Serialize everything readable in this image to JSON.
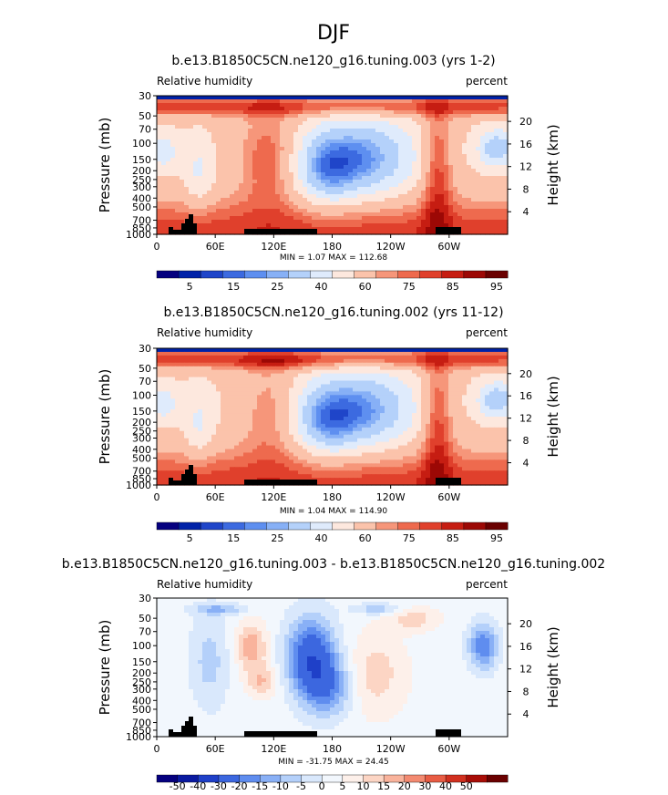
{
  "figure": {
    "title": "DJF"
  },
  "colors": {
    "abs_scale": [
      "#05007f",
      "#0022a8",
      "#1f45c9",
      "#3c6ae0",
      "#5e8ff0",
      "#87b0f6",
      "#b4d1fa",
      "#dfebfc",
      "#fde8de",
      "#fbc3ab",
      "#f6967a",
      "#ee6a4e",
      "#e0402c",
      "#c61d12",
      "#9c0805",
      "#6a0000"
    ],
    "diff_scale": [
      "#05007f",
      "#0a1aa0",
      "#1f40c8",
      "#3c67df",
      "#5f8def",
      "#89b0f6",
      "#b4d0fa",
      "#d9e8fc",
      "#f2f7fd",
      "#fdf0ea",
      "#fcd5c4",
      "#f9b39c",
      "#f38a71",
      "#e85c44",
      "#d1301f",
      "#a80d07",
      "#6a0000"
    ]
  },
  "chart_data": [
    {
      "type": "contour",
      "title": "b.e13.B1850C5CN.ne120_g16.tuning.003 (yrs 1-2)",
      "variable_label": "Relative humidity",
      "units_label": "percent",
      "ylabel": "Pressure  (mb)",
      "ylabel_right": "Height  (km)",
      "y_ticks": [
        "30",
        "50",
        "70",
        "100",
        "150",
        "200",
        "250",
        "300",
        "400",
        "500",
        "700",
        "850",
        "1000"
      ],
      "y_ticks_right": [
        "20",
        "16",
        "12",
        "8",
        "4"
      ],
      "x_ticks": [
        "0",
        "60E",
        "120E",
        "180",
        "120W",
        "60W"
      ],
      "stats": {
        "min": "1.07",
        "max": "112.68",
        "text": "MIN =     1.07   MAX =  112.68"
      },
      "colorbar_labels": [
        "5",
        "15",
        "25",
        "40",
        "60",
        "75",
        "85",
        "95"
      ]
    },
    {
      "type": "contour",
      "title": "b.e13.B1850C5CN.ne120_g16.tuning.002 (yrs 11-12)",
      "variable_label": "Relative humidity",
      "units_label": "percent",
      "ylabel": "Pressure  (mb)",
      "ylabel_right": "Height  (km)",
      "y_ticks": [
        "30",
        "50",
        "70",
        "100",
        "150",
        "200",
        "250",
        "300",
        "400",
        "500",
        "700",
        "850",
        "1000"
      ],
      "y_ticks_right": [
        "20",
        "16",
        "12",
        "8",
        "4"
      ],
      "x_ticks": [
        "0",
        "60E",
        "120E",
        "180",
        "120W",
        "60W"
      ],
      "stats": {
        "min": "1.04",
        "max": "114.90",
        "text": "MIN =     1.04   MAX =  114.90"
      },
      "colorbar_labels": [
        "5",
        "15",
        "25",
        "40",
        "60",
        "75",
        "85",
        "95"
      ]
    },
    {
      "type": "contour",
      "title": "b.e13.B1850C5CN.ne120_g16.tuning.003 - b.e13.B1850C5CN.ne120_g16.tuning.002",
      "variable_label": "Relative humidity",
      "units_label": "percent",
      "ylabel": "Pressure  (mb)",
      "ylabel_right": "Height  (km)",
      "y_ticks": [
        "30",
        "50",
        "70",
        "100",
        "150",
        "200",
        "250",
        "300",
        "400",
        "500",
        "700",
        "850",
        "1000"
      ],
      "y_ticks_right": [
        "20",
        "16",
        "12",
        "8",
        "4"
      ],
      "x_ticks": [
        "0",
        "60E",
        "120E",
        "180",
        "120W",
        "60W"
      ],
      "stats": {
        "min": "-31.75",
        "max": "24.45",
        "text": "MIN =   -31.75   MAX =   24.45"
      },
      "colorbar_labels": [
        "-50",
        "-40",
        "-30",
        "-20",
        "-15",
        "-10",
        "-5",
        "0",
        "5",
        "10",
        "15",
        "20",
        "30",
        "40",
        "50"
      ]
    }
  ]
}
